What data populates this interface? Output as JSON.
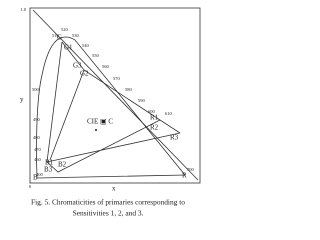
{
  "figure": {
    "axes": {
      "y_label": "y",
      "x_label": "x",
      "y_top": "1.0",
      "origin": "0"
    },
    "white_point": "CIE ▣ C",
    "primaries": [
      "G1",
      "G2",
      "G3",
      "R1",
      "R2",
      "R3",
      "B1",
      "B2",
      "B3",
      "G",
      "R",
      "B"
    ],
    "wavelengths": [
      "510",
      "520",
      "530",
      "540",
      "550",
      "560",
      "570",
      "580",
      "590",
      "600",
      "610",
      "700",
      "500",
      "490",
      "480",
      "470",
      "460",
      "400"
    ],
    "caption": [
      "Fig. 5. Chromaticities of primaries corresponding to",
      "Sensitivities 1, 2, and 3."
    ]
  }
}
